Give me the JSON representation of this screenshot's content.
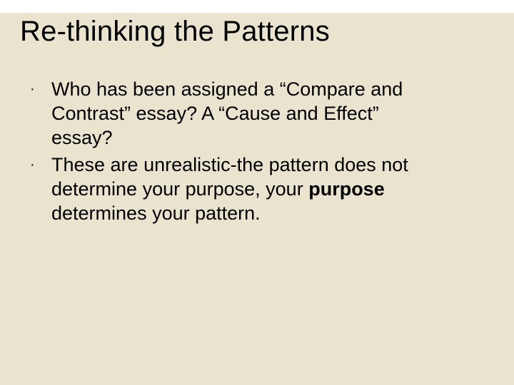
{
  "slide": {
    "background_color": "#eae3ce",
    "topband_color": "#ffffff",
    "text_color": "#000000",
    "font_family": "Arial",
    "title": {
      "text": "Re-thinking the Patterns",
      "fontsize": 40
    },
    "bullets": [
      {
        "text": "Who has been assigned a “Compare and Contrast” essay? A “Cause and Effect” essay?"
      },
      {
        "text_before_bold": "These are unrealistic-the pattern does not determine your purpose, your ",
        "bold_word": "purpose",
        "text_after_bold": " determines your pattern."
      }
    ],
    "bullet_marker": "·",
    "body_fontsize": 27,
    "body_lineheight": 34
  }
}
